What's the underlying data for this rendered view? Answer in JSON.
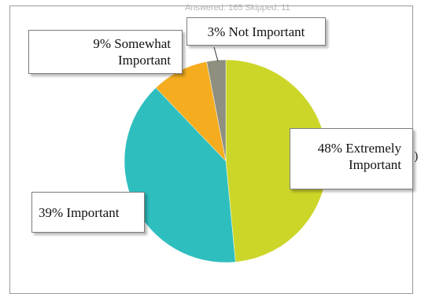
{
  "header": {
    "text": "Answered: 165    Skipped: 11"
  },
  "side_mark": ")",
  "chart_data": {
    "type": "pie",
    "title": "",
    "slices": [
      {
        "value": 48,
        "label_line1": "48% Extremely",
        "label_line2": "Important",
        "color": "#cbd629"
      },
      {
        "value": 39,
        "label_line1": "39% Important",
        "label_line2": "",
        "color": "#2fbebe"
      },
      {
        "value": 9,
        "label_line1": "9% Somewhat",
        "label_line2": "Important",
        "color": "#f5ad1f"
      },
      {
        "value": 3,
        "label_line1": "3% Not Important",
        "label_line2": "",
        "color": "#8e8f7e"
      }
    ]
  }
}
